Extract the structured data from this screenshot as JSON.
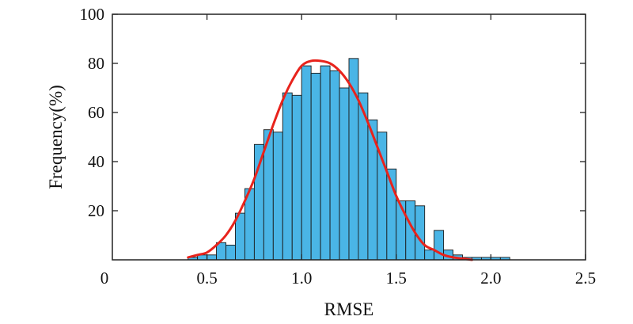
{
  "chart_data": {
    "type": "bar",
    "subtype": "histogram-with-fit-curve",
    "title": "",
    "xlabel": "RMSE",
    "ylabel": "Frequency(%)",
    "xlim": [
      0,
      2.5
    ],
    "ylim": [
      0,
      100
    ],
    "x_ticks": [
      0.5,
      1.0,
      1.5,
      2.0,
      2.5
    ],
    "x_tick_labels": [
      "0.5",
      "1.0",
      "1.5",
      "2.0",
      "2.5"
    ],
    "y_ticks": [
      20,
      40,
      60,
      80,
      100
    ],
    "y_tick_labels": [
      "20",
      "40",
      "60",
      "80",
      "100"
    ],
    "origin_label": "0",
    "grid": false,
    "legend": "none",
    "bin_width": 0.05,
    "bins": [
      {
        "x0": 0.4,
        "x1": 0.45,
        "value": 1
      },
      {
        "x0": 0.45,
        "x1": 0.5,
        "value": 2
      },
      {
        "x0": 0.5,
        "x1": 0.55,
        "value": 2
      },
      {
        "x0": 0.55,
        "x1": 0.6,
        "value": 7
      },
      {
        "x0": 0.6,
        "x1": 0.65,
        "value": 6
      },
      {
        "x0": 0.65,
        "x1": 0.7,
        "value": 19
      },
      {
        "x0": 0.7,
        "x1": 0.75,
        "value": 29
      },
      {
        "x0": 0.75,
        "x1": 0.8,
        "value": 47
      },
      {
        "x0": 0.8,
        "x1": 0.85,
        "value": 53
      },
      {
        "x0": 0.85,
        "x1": 0.9,
        "value": 52
      },
      {
        "x0": 0.9,
        "x1": 0.95,
        "value": 68
      },
      {
        "x0": 0.95,
        "x1": 1.0,
        "value": 67
      },
      {
        "x0": 1.0,
        "x1": 1.05,
        "value": 79
      },
      {
        "x0": 1.05,
        "x1": 1.1,
        "value": 76
      },
      {
        "x0": 1.1,
        "x1": 1.15,
        "value": 79
      },
      {
        "x0": 1.15,
        "x1": 1.2,
        "value": 77
      },
      {
        "x0": 1.2,
        "x1": 1.25,
        "value": 70
      },
      {
        "x0": 1.25,
        "x1": 1.3,
        "value": 82
      },
      {
        "x0": 1.3,
        "x1": 1.35,
        "value": 68
      },
      {
        "x0": 1.35,
        "x1": 1.4,
        "value": 57
      },
      {
        "x0": 1.4,
        "x1": 1.45,
        "value": 52
      },
      {
        "x0": 1.45,
        "x1": 1.5,
        "value": 37
      },
      {
        "x0": 1.5,
        "x1": 1.55,
        "value": 24
      },
      {
        "x0": 1.55,
        "x1": 1.6,
        "value": 24
      },
      {
        "x0": 1.6,
        "x1": 1.65,
        "value": 22
      },
      {
        "x0": 1.65,
        "x1": 1.7,
        "value": 4
      },
      {
        "x0": 1.7,
        "x1": 1.75,
        "value": 12
      },
      {
        "x0": 1.75,
        "x1": 1.8,
        "value": 4
      },
      {
        "x0": 1.8,
        "x1": 1.85,
        "value": 2
      },
      {
        "x0": 1.85,
        "x1": 1.9,
        "value": 1
      },
      {
        "x0": 1.9,
        "x1": 1.95,
        "value": 1
      },
      {
        "x0": 1.95,
        "x1": 2.0,
        "value": 1
      },
      {
        "x0": 2.0,
        "x1": 2.05,
        "value": 1
      },
      {
        "x0": 2.05,
        "x1": 2.1,
        "value": 1
      }
    ],
    "fit_curve": {
      "x": [
        0.4,
        0.45,
        0.5,
        0.55,
        0.6,
        0.65,
        0.7,
        0.75,
        0.8,
        0.85,
        0.9,
        0.95,
        1.0,
        1.05,
        1.1,
        1.15,
        1.2,
        1.25,
        1.3,
        1.35,
        1.4,
        1.45,
        1.5,
        1.55,
        1.6,
        1.65,
        1.7,
        1.75,
        1.8,
        1.85,
        1.9
      ],
      "y": [
        1,
        2,
        3,
        6,
        10,
        16,
        24,
        33,
        44,
        55,
        65,
        73,
        79,
        81,
        81,
        80,
        77,
        72,
        65,
        56,
        46,
        36,
        26,
        18,
        11,
        6,
        4,
        2,
        1,
        0.5,
        0
      ]
    },
    "colors": {
      "bar_fill": "#4ab5e6",
      "bar_stroke": "#1a1a1a",
      "curve": "#e8231c",
      "axis": "#222222"
    }
  }
}
